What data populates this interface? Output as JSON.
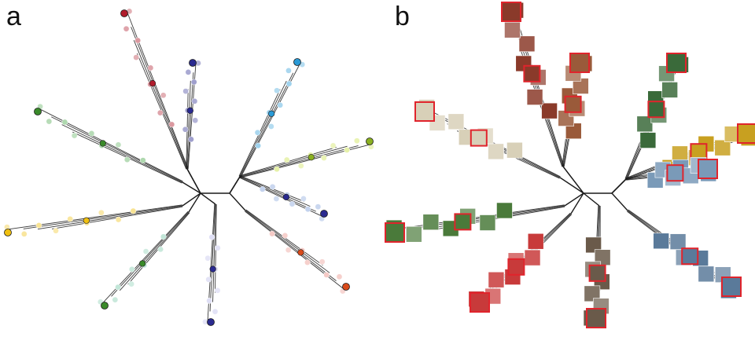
{
  "figure": {
    "panel_a_label": "a",
    "panel_b_label": "b"
  },
  "colors": {
    "edge": "#1a1a1a",
    "thumbnail_frame": "#e0242c",
    "branch_palette": [
      "#b01c2c",
      "#3a3aa0",
      "#2a9ad6",
      "#c8e040",
      "#7a9ad8",
      "#d8c8e8",
      "#e88a80",
      "#4aa84a",
      "#d8e89a",
      "#3ab04a",
      "#f0c010",
      "#1e7a9a",
      "#78c8a8",
      "#2a2a90",
      "#d84a1a",
      "#3a8a2a"
    ]
  },
  "branches": [
    {
      "name": "branch-top-red",
      "color": "#b01c2c",
      "tip_label_color": "#b01c2c",
      "thumb": "#8a3a2a"
    },
    {
      "name": "branch-top-navy",
      "color": "#2a2a90",
      "tip_label_color": "#2a2a90",
      "thumb": "#9a5a3a"
    },
    {
      "name": "branch-upper-right-blue",
      "color": "#2a9ad6",
      "tip_label_color": "#2a9ad6",
      "thumb": "#3a6a3a"
    },
    {
      "name": "branch-right-lime",
      "color": "#c8e040",
      "tip_label_color": "#8ab020",
      "thumb": "#c8a020"
    },
    {
      "name": "branch-right-periwinkle",
      "color": "#7a9ad8",
      "tip_label_color": "#2a2a90",
      "thumb": "#7a9ab8"
    },
    {
      "name": "branch-lower-right-pink",
      "color": "#e88a80",
      "tip_label_color": "#d84a1a",
      "thumb": "#5a7a9a"
    },
    {
      "name": "branch-bottom-lavender",
      "color": "#b8b8e8",
      "tip_label_color": "#2a2a90",
      "thumb": "#6a5a4a"
    },
    {
      "name": "branch-lower-left-teal",
      "color": "#78c8a8",
      "tip_label_color": "#3a8a2a",
      "thumb": "#c83a3a"
    },
    {
      "name": "branch-left-yellow",
      "color": "#f0c010",
      "tip_label_color": "#f0c010",
      "thumb": "#4a7a3a"
    },
    {
      "name": "branch-upper-left-green",
      "color": "#4aa84a",
      "tip_label_color": "#3a8a2a",
      "thumb": "#d8d0b8"
    }
  ]
}
